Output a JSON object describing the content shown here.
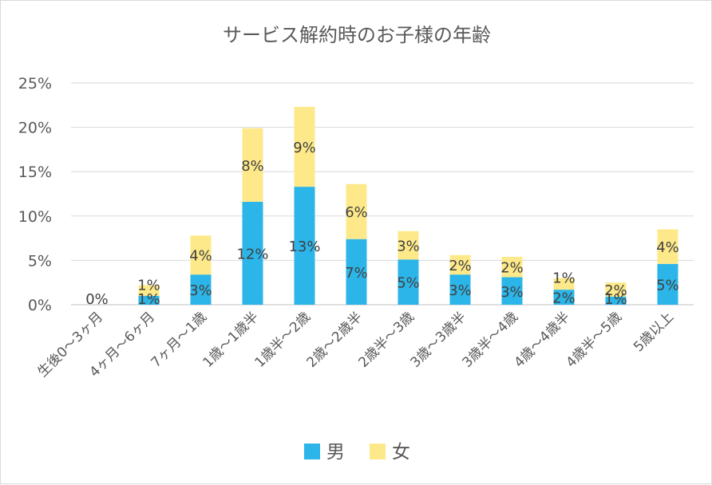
{
  "chart_data": {
    "type": "bar",
    "stacked": true,
    "title": "サービス解約時のお子様の年齢",
    "xlabel": "",
    "ylabel": "",
    "ylim": [
      0,
      25
    ],
    "yticks": [
      0,
      5,
      10,
      15,
      20,
      25
    ],
    "ytick_labels": [
      "0%",
      "5%",
      "10%",
      "15%",
      "20%",
      "25%"
    ],
    "grid": true,
    "legend_position": "bottom",
    "categories": [
      "生後0～3ヶ月",
      "4ヶ月～6ヶ月",
      "7ヶ月～1歳",
      "1歳～1歳半",
      "1歳半～2歳",
      "2歳～2歳半",
      "2歳半～3歳",
      "3歳～3歳半",
      "3歳半～4歳",
      "4歳～4歳半",
      "4歳半～5歳",
      "5歳以上"
    ],
    "series": [
      {
        "name": "男",
        "color": "#2cb5e8",
        "values": [
          0.0,
          1.0,
          3.4,
          11.6,
          13.3,
          7.4,
          5.1,
          3.4,
          3.1,
          1.7,
          0.9,
          4.6
        ],
        "labels": [
          "0%",
          "1%",
          "3%",
          "12%",
          "13%",
          "7%",
          "5%",
          "3%",
          "3%",
          "2%",
          "1%",
          "5%"
        ]
      },
      {
        "name": "女",
        "color": "#fde98a",
        "values": [
          0.0,
          1.2,
          4.4,
          8.3,
          9.0,
          6.2,
          3.2,
          2.2,
          2.3,
          1.3,
          1.6,
          3.9
        ],
        "labels": [
          "",
          "1%",
          "4%",
          "8%",
          "9%",
          "6%",
          "3%",
          "2%",
          "2%",
          "1%",
          "2%",
          "4%"
        ]
      }
    ]
  }
}
